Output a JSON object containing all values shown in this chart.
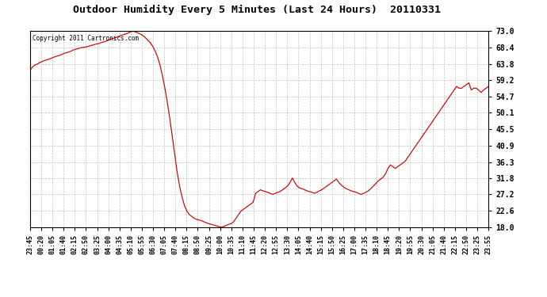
{
  "title": "Outdoor Humidity Every 5 Minutes (Last 24 Hours)  20110331",
  "copyright": "Copyright 2011 Cartronics.com",
  "line_color": "#cc0000",
  "background_color": "#ffffff",
  "plot_bg_color": "#ffffff",
  "grid_color": "#bbbbbb",
  "ylim": [
    18.0,
    73.0
  ],
  "yticks": [
    18.0,
    22.6,
    27.2,
    31.8,
    36.3,
    40.9,
    45.5,
    50.1,
    54.7,
    59.2,
    63.8,
    68.4,
    73.0
  ],
  "xtick_labels": [
    "23:45",
    "00:20",
    "01:05",
    "01:40",
    "02:15",
    "02:50",
    "03:25",
    "04:00",
    "04:35",
    "05:10",
    "05:55",
    "06:30",
    "07:05",
    "07:40",
    "08:15",
    "08:50",
    "09:25",
    "10:00",
    "10:35",
    "11:10",
    "11:45",
    "12:20",
    "12:55",
    "13:30",
    "14:05",
    "14:40",
    "15:15",
    "15:50",
    "16:25",
    "17:00",
    "17:35",
    "18:10",
    "18:45",
    "19:20",
    "19:55",
    "20:30",
    "21:05",
    "21:40",
    "22:15",
    "22:50",
    "23:25",
    "23:55"
  ],
  "humidity_data": [
    62.0,
    63.0,
    63.5,
    63.8,
    64.2,
    64.5,
    64.8,
    65.0,
    65.2,
    65.5,
    65.8,
    66.0,
    66.2,
    66.5,
    66.8,
    67.0,
    67.2,
    67.5,
    67.8,
    68.0,
    68.2,
    68.4,
    68.5,
    68.6,
    68.8,
    69.0,
    69.2,
    69.4,
    69.5,
    69.8,
    70.0,
    70.2,
    70.5,
    70.8,
    71.0,
    71.2,
    71.5,
    71.8,
    72.0,
    72.2,
    72.5,
    72.8,
    73.0,
    72.8,
    72.5,
    72.2,
    71.8,
    71.2,
    70.5,
    69.8,
    68.8,
    67.5,
    65.8,
    63.5,
    60.5,
    57.0,
    53.0,
    48.5,
    43.5,
    38.5,
    33.5,
    29.5,
    26.5,
    24.0,
    22.5,
    21.5,
    21.0,
    20.5,
    20.2,
    20.0,
    19.8,
    19.5,
    19.2,
    19.0,
    18.8,
    18.6,
    18.4,
    18.2,
    18.0,
    18.2,
    18.5,
    18.8,
    19.0,
    19.5,
    20.5,
    21.5,
    22.5,
    23.0,
    23.5,
    24.0,
    24.5,
    25.0,
    27.5,
    28.0,
    28.5,
    28.2,
    28.0,
    27.8,
    27.5,
    27.2,
    27.5,
    27.8,
    28.0,
    28.5,
    29.0,
    29.5,
    30.5,
    31.8,
    30.5,
    29.5,
    29.0,
    28.8,
    28.5,
    28.2,
    28.0,
    27.8,
    27.5,
    27.8,
    28.2,
    28.5,
    29.0,
    29.5,
    30.0,
    30.5,
    31.0,
    31.5,
    30.5,
    29.8,
    29.2,
    28.8,
    28.5,
    28.2,
    28.0,
    27.8,
    27.5,
    27.2,
    27.5,
    27.8,
    28.2,
    28.8,
    29.5,
    30.2,
    31.0,
    31.5,
    32.0,
    33.0,
    34.5,
    35.5,
    35.0,
    34.5,
    35.0,
    35.5,
    36.0,
    36.5,
    37.5,
    38.5,
    39.5,
    40.5,
    41.5,
    42.5,
    43.5,
    44.5,
    45.5,
    46.5,
    47.5,
    48.5,
    49.5,
    50.5,
    51.5,
    52.5,
    53.5,
    54.5,
    55.5,
    56.5,
    57.5,
    57.0,
    57.0,
    57.5,
    58.0,
    58.5,
    56.5,
    57.0,
    57.0,
    56.5,
    55.8,
    56.5,
    57.0,
    57.5
  ]
}
